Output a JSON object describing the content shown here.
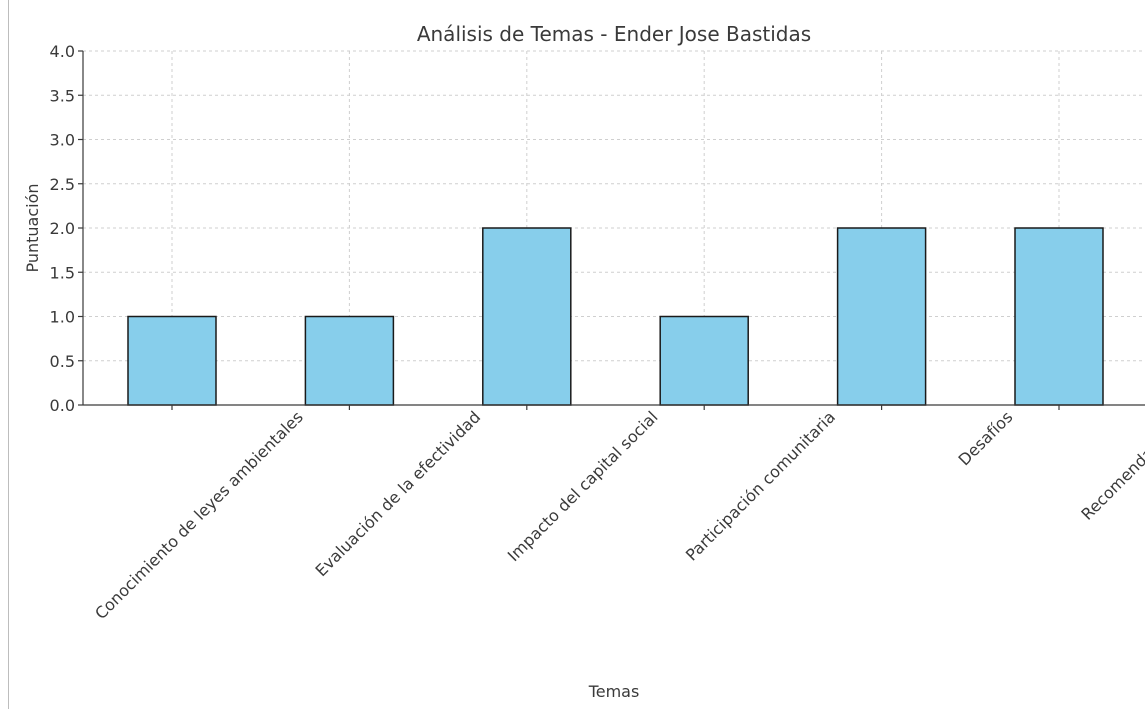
{
  "chart_data": {
    "type": "bar",
    "title": "Análisis de Temas - Ender Jose Bastidas",
    "xlabel": "Temas",
    "ylabel": "Puntuación",
    "categories": [
      "Conocimiento de leyes ambientales",
      "Evaluación de la efectividad",
      "Impacto del capital social",
      "Participación comunitaria",
      "Desafíos",
      "Recomendaciones"
    ],
    "values": [
      1,
      1,
      2,
      1,
      2,
      2
    ],
    "ylim": [
      0,
      4
    ],
    "yticks": [
      0.0,
      0.5,
      1.0,
      1.5,
      2.0,
      2.5,
      3.0,
      3.5,
      4.0
    ],
    "ytick_labels": [
      "0.0",
      "0.5",
      "1.0",
      "1.5",
      "2.0",
      "2.5",
      "3.0",
      "3.5",
      "4.0"
    ],
    "grid": true,
    "bar_color": "#87ceeb",
    "edge_color": "#1a1a1a"
  }
}
